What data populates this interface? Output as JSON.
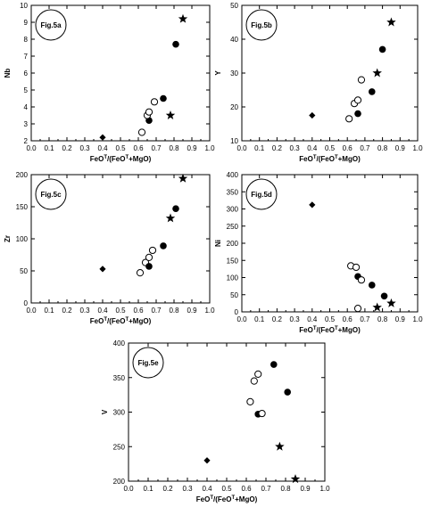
{
  "colors": {
    "ink": "#000000",
    "paper": "#ffffff"
  },
  "chart_data": [
    {
      "type": "scatter",
      "id": "a",
      "tag": "Fig.5a",
      "xlabel_main": "FeO",
      "xlabel_sup": "T",
      "xlabel_tail": "/(FeO",
      "xlabel_sup2": "T",
      "xlabel_end": "+MgO)",
      "ylabel": "Nb",
      "xlim": [
        0.0,
        1.0
      ],
      "ylim": [
        2,
        10
      ],
      "x_ticks": [
        "0.0",
        "0.1",
        "0.2",
        "0.3",
        "0.4",
        "0.5",
        "0.6",
        "0.7",
        "0.8",
        "0.9",
        "1.0"
      ],
      "y_ticks": [
        "2",
        "3",
        "4",
        "5",
        "6",
        "7",
        "8",
        "9",
        "10"
      ],
      "points": [
        {
          "shape": "diamond",
          "x": 0.4,
          "y": 2.2
        },
        {
          "shape": "open",
          "x": 0.62,
          "y": 2.5
        },
        {
          "shape": "filled",
          "x": 0.66,
          "y": 3.2
        },
        {
          "shape": "open",
          "x": 0.65,
          "y": 3.5
        },
        {
          "shape": "open",
          "x": 0.66,
          "y": 3.7
        },
        {
          "shape": "open",
          "x": 0.69,
          "y": 4.3
        },
        {
          "shape": "filled",
          "x": 0.74,
          "y": 4.5
        },
        {
          "shape": "star",
          "x": 0.78,
          "y": 3.5
        },
        {
          "shape": "filled",
          "x": 0.81,
          "y": 7.7
        },
        {
          "shape": "star",
          "x": 0.85,
          "y": 9.2
        }
      ]
    },
    {
      "type": "scatter",
      "id": "b",
      "tag": "Fig.5b",
      "xlabel_main": "FeO",
      "xlabel_sup": "T",
      "xlabel_tail": "/(FeO",
      "xlabel_sup2": "T",
      "xlabel_end": "+MgO)",
      "ylabel": "Y",
      "xlim": [
        0.0,
        1.0
      ],
      "ylim": [
        10,
        50
      ],
      "x_ticks": [
        "0.0",
        "0.1",
        "0.2",
        "0.3",
        "0.4",
        "0.5",
        "0.6",
        "0.7",
        "0.8",
        "0.9",
        "1.0"
      ],
      "y_ticks": [
        "10",
        "20",
        "30",
        "40",
        "50"
      ],
      "points": [
        {
          "shape": "diamond",
          "x": 0.4,
          "y": 17.5
        },
        {
          "shape": "open",
          "x": 0.61,
          "y": 16.5
        },
        {
          "shape": "open",
          "x": 0.64,
          "y": 21.0
        },
        {
          "shape": "open",
          "x": 0.66,
          "y": 22.0
        },
        {
          "shape": "open",
          "x": 0.68,
          "y": 28.0
        },
        {
          "shape": "filled",
          "x": 0.66,
          "y": 18.0
        },
        {
          "shape": "filled",
          "x": 0.74,
          "y": 24.5
        },
        {
          "shape": "star",
          "x": 0.77,
          "y": 30.0
        },
        {
          "shape": "filled",
          "x": 0.8,
          "y": 37.0
        },
        {
          "shape": "star",
          "x": 0.85,
          "y": 45.0
        }
      ]
    },
    {
      "type": "scatter",
      "id": "c",
      "tag": "Fig.5c",
      "xlabel_main": "FeO",
      "xlabel_sup": "T",
      "xlabel_tail": "/(FeO",
      "xlabel_sup2": "T",
      "xlabel_end": "+MgO)",
      "ylabel": "Zr",
      "xlim": [
        0.0,
        1.0
      ],
      "ylim": [
        0,
        200
      ],
      "x_ticks": [
        "0.0",
        "0.1",
        "0.2",
        "0.3",
        "0.4",
        "0.5",
        "0.6",
        "0.7",
        "0.8",
        "0.9",
        "1.0"
      ],
      "y_ticks": [
        "0",
        "50",
        "100",
        "150",
        "200"
      ],
      "points": [
        {
          "shape": "diamond",
          "x": 0.4,
          "y": 53
        },
        {
          "shape": "open",
          "x": 0.61,
          "y": 47
        },
        {
          "shape": "open",
          "x": 0.64,
          "y": 63
        },
        {
          "shape": "open",
          "x": 0.66,
          "y": 71
        },
        {
          "shape": "open",
          "x": 0.68,
          "y": 82
        },
        {
          "shape": "filled",
          "x": 0.66,
          "y": 57
        },
        {
          "shape": "filled",
          "x": 0.74,
          "y": 89
        },
        {
          "shape": "star",
          "x": 0.78,
          "y": 132
        },
        {
          "shape": "filled",
          "x": 0.81,
          "y": 147
        },
        {
          "shape": "star",
          "x": 0.85,
          "y": 194
        }
      ]
    },
    {
      "type": "scatter",
      "id": "d",
      "tag": "Fig.5d",
      "xlabel_main": "FeO",
      "xlabel_sup": "T",
      "xlabel_tail": "/(FeO",
      "xlabel_sup2": "T",
      "xlabel_end": "+MgO)",
      "ylabel": "Ni",
      "xlim": [
        0.0,
        1.0
      ],
      "ylim": [
        0,
        400
      ],
      "x_ticks": [
        "0.0",
        "0.1",
        "0.2",
        "0.3",
        "0.4",
        "0.5",
        "0.6",
        "0.7",
        "0.8",
        "0.9",
        "1.0"
      ],
      "y_ticks": [
        "0",
        "50",
        "100",
        "150",
        "200",
        "250",
        "300",
        "350",
        "400"
      ],
      "points": [
        {
          "shape": "diamond",
          "x": 0.4,
          "y": 312
        },
        {
          "shape": "open",
          "x": 0.62,
          "y": 134
        },
        {
          "shape": "open",
          "x": 0.65,
          "y": 130
        },
        {
          "shape": "filled",
          "x": 0.66,
          "y": 103
        },
        {
          "shape": "open",
          "x": 0.68,
          "y": 93
        },
        {
          "shape": "filled",
          "x": 0.74,
          "y": 78
        },
        {
          "shape": "filled",
          "x": 0.81,
          "y": 46
        },
        {
          "shape": "open",
          "x": 0.66,
          "y": 10
        },
        {
          "shape": "star",
          "x": 0.77,
          "y": 13
        },
        {
          "shape": "star",
          "x": 0.85,
          "y": 25
        }
      ]
    },
    {
      "type": "scatter",
      "id": "e",
      "tag": "Fig.5e",
      "xlabel_main": "FeO",
      "xlabel_sup": "T",
      "xlabel_tail": "/(FeO",
      "xlabel_sup2": "T",
      "xlabel_end": "+MgO)",
      "ylabel": "V",
      "xlim": [
        0.0,
        1.0
      ],
      "ylim": [
        200,
        400
      ],
      "x_ticks": [
        "0.0",
        "0.1",
        "0.2",
        "0.3",
        "0.4",
        "0.5",
        "0.6",
        "0.7",
        "0.8",
        "0.9",
        "1.0"
      ],
      "y_ticks": [
        "200",
        "250",
        "300",
        "350",
        "400"
      ],
      "points": [
        {
          "shape": "diamond",
          "x": 0.4,
          "y": 230
        },
        {
          "shape": "open",
          "x": 0.62,
          "y": 315
        },
        {
          "shape": "open",
          "x": 0.64,
          "y": 345
        },
        {
          "shape": "open",
          "x": 0.66,
          "y": 355
        },
        {
          "shape": "filled",
          "x": 0.74,
          "y": 369
        },
        {
          "shape": "filled",
          "x": 0.66,
          "y": 297
        },
        {
          "shape": "open",
          "x": 0.68,
          "y": 298
        },
        {
          "shape": "filled",
          "x": 0.81,
          "y": 329
        },
        {
          "shape": "star",
          "x": 0.77,
          "y": 250
        },
        {
          "shape": "star",
          "x": 0.85,
          "y": 203
        }
      ]
    }
  ]
}
